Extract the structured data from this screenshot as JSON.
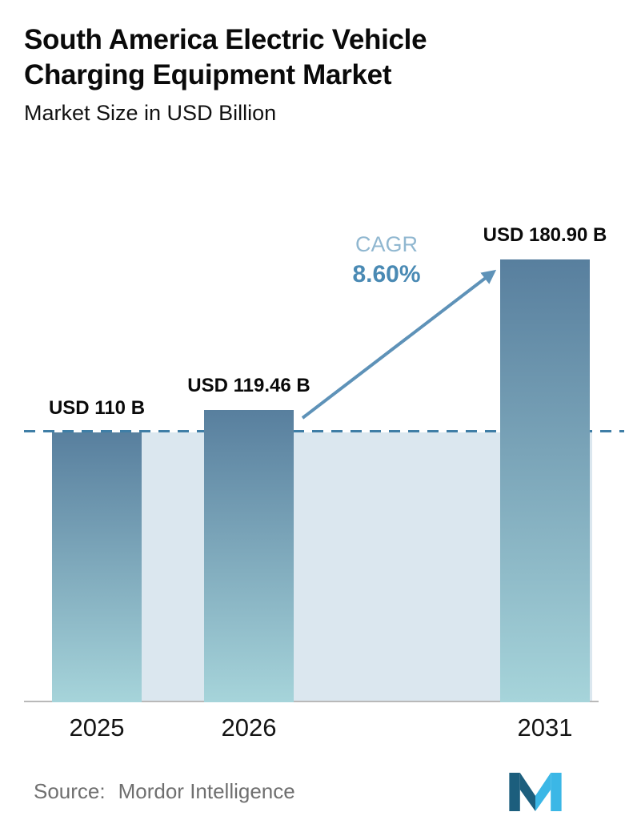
{
  "header": {
    "title_line1": "South America Electric Vehicle",
    "title_line2": "Charging Equipment Market",
    "subtitle": "Market Size in USD Billion"
  },
  "chart_data": {
    "type": "bar",
    "title": "South America Electric Vehicle Charging Equipment Market",
    "subtitle": "Market Size in USD Billion",
    "xlabel": "",
    "ylabel": "Market Size (USD Billion)",
    "categories": [
      "2025",
      "2026",
      "2031"
    ],
    "values": [
      110,
      119.46,
      180.9
    ],
    "labels": [
      "USD 110 B",
      "USD 119.46 B",
      "USD 180.90 B"
    ],
    "ylim": [
      0,
      200
    ],
    "grid": false,
    "legend": false,
    "reference_line_value": 110,
    "annotation": {
      "cagr_label": "CAGR",
      "cagr_value": "8.60%"
    },
    "colors": {
      "bar_top": "#587f9e",
      "bar_bottom": "#a6d4da",
      "band": "#dbe7ef",
      "dashed_line": "#3f7ea6",
      "arrow": "#5e92b8",
      "cagr_label": "#90b7d0",
      "cagr_value": "#4a8ab4",
      "axis_line": "#b9b9b9",
      "title_text": "#0a0a0a",
      "source_text": "#6f6f6f",
      "logo_dark": "#1c5e7d",
      "logo_light": "#3bb7e6"
    }
  },
  "footer": {
    "source_label": "Source:",
    "source_value": "Mordor Intelligence",
    "logo": "mordor-intelligence-logo"
  }
}
